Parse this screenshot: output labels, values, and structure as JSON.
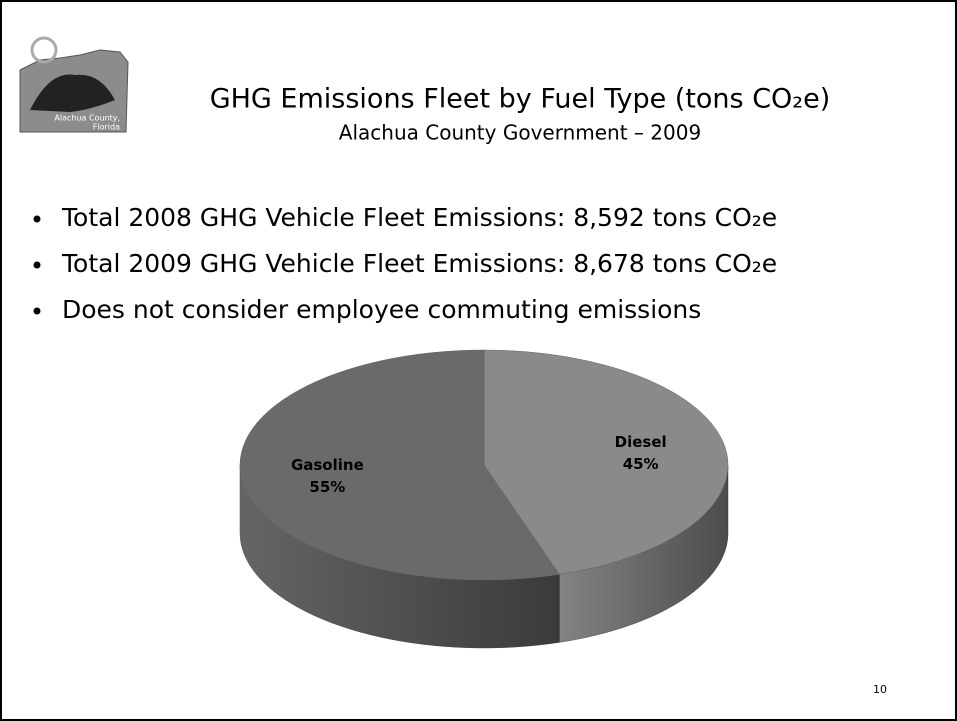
{
  "logo_text": [
    "Alachua County,",
    "Florida"
  ],
  "bullets": [
    "Total 2008 GHG Vehicle Fleet Emissions: 8,592 tons CO₂e",
    "Total 2009 GHG Vehicle Fleet Emissions: 8,678 tons CO₂e",
    "Does not consider employee commuting emissions"
  ],
  "page_number": "10",
  "chart_data": {
    "type": "pie",
    "title": "GHG Emissions Fleet by Fuel Type (tons CO₂e)",
    "subtitle": "Alachua County Government – 2009",
    "categories": [
      "Diesel",
      "Gasoline"
    ],
    "values": [
      45,
      55
    ],
    "value_labels": [
      "45%",
      "55%"
    ],
    "colors": [
      "#8a8a8a",
      "#6a6a6a"
    ]
  }
}
